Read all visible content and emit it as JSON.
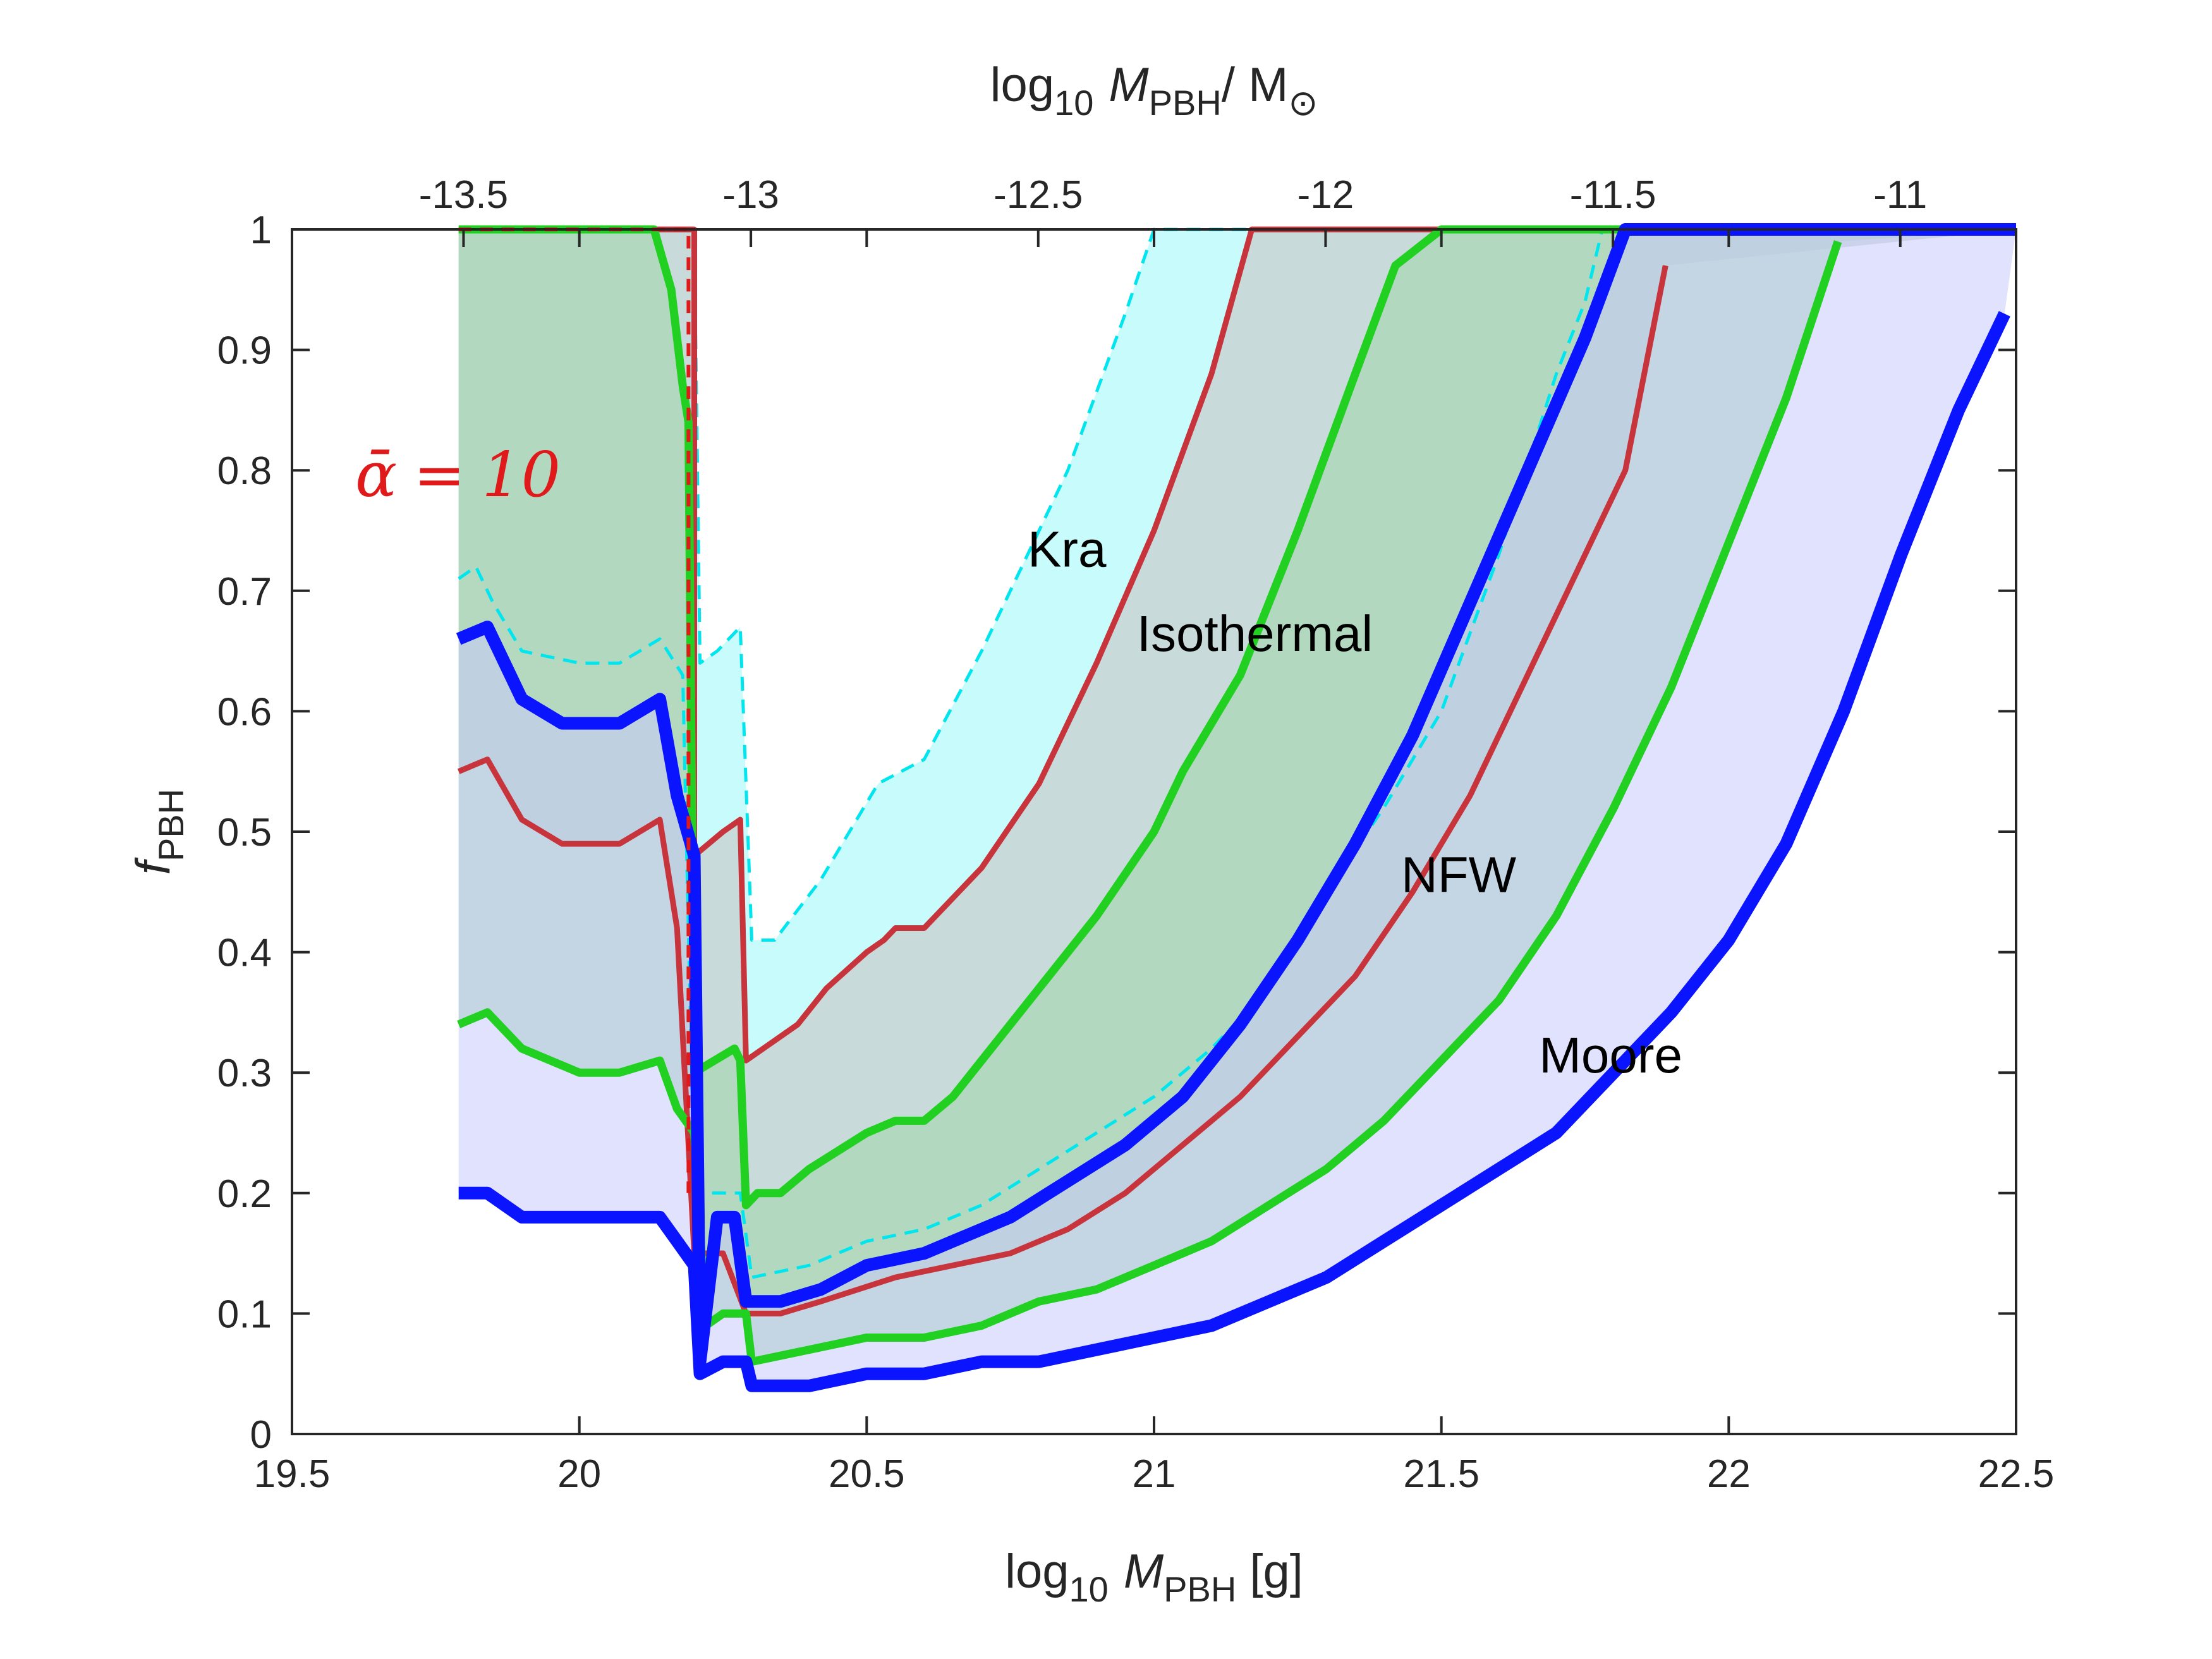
{
  "chart_data": {
    "type": "line",
    "annotation": {
      "parameter_symbol": "ᾱ",
      "equals": "=",
      "parameter_value": "10"
    },
    "x_axis": {
      "label_main": "log",
      "label_sub": "10",
      "label_var": "M",
      "label_var_sub": "PBH",
      "label_units": " [g]",
      "range": [
        19.5,
        22.5
      ],
      "ticks": [
        {
          "value": 19.5,
          "label": "19.5"
        },
        {
          "value": 20,
          "label": "20"
        },
        {
          "value": 20.5,
          "label": "20.5"
        },
        {
          "value": 21,
          "label": "21"
        },
        {
          "value": 21.5,
          "label": "21.5"
        },
        {
          "value": 22,
          "label": "22"
        },
        {
          "value": 22.5,
          "label": "22.5"
        }
      ]
    },
    "top_axis": {
      "label_main": "log",
      "label_sub": "10",
      "label_var": "M",
      "label_var_sub": "PBH",
      "label_tail": "/ M",
      "label_tail_sub": "⊙",
      "ticks": [
        {
          "value": -13.5,
          "label": "-13.5"
        },
        {
          "value": -13,
          "label": "-13"
        },
        {
          "value": -12.5,
          "label": "-12.5"
        },
        {
          "value": -12,
          "label": "-12"
        },
        {
          "value": -11.5,
          "label": "-11.5"
        },
        {
          "value": -11,
          "label": "-11"
        }
      ]
    },
    "y_axis": {
      "label_var": "f",
      "label_var_sub": "PBH",
      "range": [
        0,
        1
      ],
      "ticks": [
        {
          "value": 0,
          "label": "0"
        },
        {
          "value": 0.1,
          "label": "0.1"
        },
        {
          "value": 0.2,
          "label": "0.2"
        },
        {
          "value": 0.3,
          "label": "0.3"
        },
        {
          "value": 0.4,
          "label": "0.4"
        },
        {
          "value": 0.5,
          "label": "0.5"
        },
        {
          "value": 0.6,
          "label": "0.6"
        },
        {
          "value": 0.7,
          "label": "0.7"
        },
        {
          "value": 0.8,
          "label": "0.8"
        },
        {
          "value": 0.9,
          "label": "0.9"
        },
        {
          "value": 1,
          "label": "1"
        }
      ]
    },
    "curve_labels": [
      {
        "text": "Kra",
        "x": 20.78,
        "y": 0.72
      },
      {
        "text": "Isothermal",
        "x": 20.97,
        "y": 0.65
      },
      {
        "text": "NFW",
        "x": 21.43,
        "y": 0.45
      },
      {
        "text": "Moore",
        "x": 21.67,
        "y": 0.3
      }
    ],
    "series": [
      {
        "name": "Kra",
        "color": "#00e5ee",
        "style": "dashed",
        "fill": "#c8fcfc",
        "width": 5,
        "upper": [
          [
            19.79,
            1
          ],
          [
            20.2,
            1
          ],
          [
            20.21,
            0.64
          ],
          [
            20.24,
            0.65
          ],
          [
            20.28,
            0.67
          ],
          [
            20.3,
            0.41
          ],
          [
            20.34,
            0.41
          ],
          [
            20.42,
            0.46
          ],
          [
            20.52,
            0.54
          ],
          [
            20.6,
            0.56
          ],
          [
            20.7,
            0.65
          ],
          [
            20.85,
            0.8
          ],
          [
            20.95,
            0.93
          ],
          [
            21.0,
            1
          ],
          [
            22.5,
            1
          ]
        ],
        "lower": [
          [
            19.79,
            0.71
          ],
          [
            19.82,
            0.72
          ],
          [
            19.85,
            0.69
          ],
          [
            19.9,
            0.65
          ],
          [
            20.0,
            0.64
          ],
          [
            20.07,
            0.64
          ],
          [
            20.14,
            0.66
          ],
          [
            20.18,
            0.63
          ],
          [
            20.2,
            0.2
          ],
          [
            20.24,
            0.2
          ],
          [
            20.28,
            0.2
          ],
          [
            20.3,
            0.13
          ],
          [
            20.4,
            0.14
          ],
          [
            20.5,
            0.16
          ],
          [
            20.6,
            0.17
          ],
          [
            20.7,
            0.19
          ],
          [
            20.8,
            0.22
          ],
          [
            20.9,
            0.25
          ],
          [
            21.0,
            0.28
          ],
          [
            21.1,
            0.32
          ],
          [
            21.2,
            0.37
          ],
          [
            21.3,
            0.45
          ],
          [
            21.4,
            0.52
          ],
          [
            21.5,
            0.6
          ],
          [
            21.6,
            0.73
          ],
          [
            21.7,
            0.88
          ],
          [
            21.75,
            0.94
          ],
          [
            21.78,
            1
          ],
          [
            22.5,
            1
          ]
        ]
      },
      {
        "name": "Isothermal",
        "color": "#c8343c",
        "style": "solid",
        "fill": "#c9d3d3",
        "width": 9,
        "upper": [
          [
            19.79,
            1
          ],
          [
            20.2,
            1
          ],
          [
            20.2,
            0.48
          ],
          [
            20.25,
            0.5
          ],
          [
            20.28,
            0.51
          ],
          [
            20.29,
            0.31
          ],
          [
            20.32,
            0.32
          ],
          [
            20.38,
            0.34
          ],
          [
            20.43,
            0.37
          ],
          [
            20.5,
            0.4
          ],
          [
            20.53,
            0.41
          ],
          [
            20.55,
            0.42
          ],
          [
            20.6,
            0.42
          ],
          [
            20.7,
            0.47
          ],
          [
            20.8,
            0.54
          ],
          [
            20.9,
            0.64
          ],
          [
            21.0,
            0.75
          ],
          [
            21.1,
            0.88
          ],
          [
            21.17,
            1
          ],
          [
            22.5,
            1
          ]
        ],
        "lower": [
          [
            19.79,
            0.55
          ],
          [
            19.84,
            0.56
          ],
          [
            19.9,
            0.51
          ],
          [
            19.97,
            0.49
          ],
          [
            20.07,
            0.49
          ],
          [
            20.14,
            0.51
          ],
          [
            20.17,
            0.42
          ],
          [
            20.2,
            0.15
          ],
          [
            20.25,
            0.15
          ],
          [
            20.29,
            0.1
          ],
          [
            20.35,
            0.1
          ],
          [
            20.42,
            0.11
          ],
          [
            20.55,
            0.13
          ],
          [
            20.65,
            0.14
          ],
          [
            20.75,
            0.15
          ],
          [
            20.85,
            0.17
          ],
          [
            20.95,
            0.2
          ],
          [
            21.05,
            0.24
          ],
          [
            21.15,
            0.28
          ],
          [
            21.25,
            0.33
          ],
          [
            21.35,
            0.38
          ],
          [
            21.45,
            0.45
          ],
          [
            21.55,
            0.53
          ],
          [
            21.65,
            0.63
          ],
          [
            21.75,
            0.73
          ],
          [
            21.82,
            0.8
          ],
          [
            21.89,
            0.97
          ]
        ]
      },
      {
        "name": "NFW",
        "color": "#22d022",
        "style": "solid",
        "fill": "#a9d8b5",
        "width": 13,
        "upper": [
          [
            19.79,
            1
          ],
          [
            20.13,
            1
          ],
          [
            20.16,
            0.95
          ],
          [
            20.18,
            0.87
          ],
          [
            20.19,
            0.84
          ],
          [
            20.2,
            0.3
          ],
          [
            20.27,
            0.32
          ],
          [
            20.28,
            0.31
          ],
          [
            20.29,
            0.19
          ],
          [
            20.31,
            0.2
          ],
          [
            20.35,
            0.2
          ],
          [
            20.4,
            0.22
          ],
          [
            20.5,
            0.25
          ],
          [
            20.55,
            0.26
          ],
          [
            20.6,
            0.26
          ],
          [
            20.65,
            0.28
          ],
          [
            20.7,
            0.31
          ],
          [
            20.8,
            0.37
          ],
          [
            20.9,
            0.43
          ],
          [
            21.0,
            0.5
          ],
          [
            21.05,
            0.55
          ],
          [
            21.15,
            0.63
          ],
          [
            21.25,
            0.75
          ],
          [
            21.35,
            0.88
          ],
          [
            21.42,
            0.97
          ],
          [
            21.5,
            1
          ],
          [
            22.5,
            1
          ]
        ],
        "lower": [
          [
            19.79,
            0.34
          ],
          [
            19.84,
            0.35
          ],
          [
            19.9,
            0.32
          ],
          [
            20.0,
            0.3
          ],
          [
            20.07,
            0.3
          ],
          [
            20.14,
            0.31
          ],
          [
            20.17,
            0.27
          ],
          [
            20.2,
            0.25
          ],
          [
            20.22,
            0.09
          ],
          [
            20.25,
            0.1
          ],
          [
            20.29,
            0.1
          ],
          [
            20.3,
            0.06
          ],
          [
            20.4,
            0.07
          ],
          [
            20.5,
            0.08
          ],
          [
            20.6,
            0.08
          ],
          [
            20.7,
            0.09
          ],
          [
            20.8,
            0.11
          ],
          [
            20.9,
            0.12
          ],
          [
            21.0,
            0.14
          ],
          [
            21.1,
            0.16
          ],
          [
            21.2,
            0.19
          ],
          [
            21.3,
            0.22
          ],
          [
            21.4,
            0.26
          ],
          [
            21.5,
            0.31
          ],
          [
            21.6,
            0.36
          ],
          [
            21.7,
            0.43
          ],
          [
            21.8,
            0.52
          ],
          [
            21.9,
            0.62
          ],
          [
            22.0,
            0.74
          ],
          [
            22.1,
            0.86
          ],
          [
            22.19,
            0.99
          ]
        ]
      },
      {
        "name": "Moore",
        "color": "#0a14ff",
        "style": "solid",
        "fill": "#c9cbfb",
        "width": 20,
        "upper": [
          [
            19.79,
            0.66
          ],
          [
            19.84,
            0.67
          ],
          [
            19.9,
            0.61
          ],
          [
            19.97,
            0.59
          ],
          [
            20.07,
            0.59
          ],
          [
            20.14,
            0.61
          ],
          [
            20.17,
            0.53
          ],
          [
            20.2,
            0.48
          ],
          [
            20.21,
            0.06
          ],
          [
            20.24,
            0.18
          ],
          [
            20.27,
            0.18
          ],
          [
            20.29,
            0.11
          ],
          [
            20.35,
            0.11
          ],
          [
            20.42,
            0.12
          ],
          [
            20.5,
            0.14
          ],
          [
            20.6,
            0.15
          ],
          [
            20.65,
            0.16
          ],
          [
            20.75,
            0.18
          ],
          [
            20.85,
            0.21
          ],
          [
            20.95,
            0.24
          ],
          [
            21.05,
            0.28
          ],
          [
            21.15,
            0.34
          ],
          [
            21.25,
            0.41
          ],
          [
            21.35,
            0.49
          ],
          [
            21.45,
            0.58
          ],
          [
            21.55,
            0.69
          ],
          [
            21.65,
            0.8
          ],
          [
            21.75,
            0.91
          ],
          [
            21.82,
            1
          ],
          [
            22.5,
            1
          ]
        ],
        "lower": [
          [
            19.79,
            0.2
          ],
          [
            19.84,
            0.2
          ],
          [
            19.9,
            0.18
          ],
          [
            20.0,
            0.18
          ],
          [
            20.07,
            0.18
          ],
          [
            20.14,
            0.18
          ],
          [
            20.17,
            0.16
          ],
          [
            20.2,
            0.14
          ],
          [
            20.21,
            0.05
          ],
          [
            20.25,
            0.06
          ],
          [
            20.29,
            0.06
          ],
          [
            20.3,
            0.04
          ],
          [
            20.4,
            0.04
          ],
          [
            20.5,
            0.05
          ],
          [
            20.6,
            0.05
          ],
          [
            20.7,
            0.06
          ],
          [
            20.8,
            0.06
          ],
          [
            20.9,
            0.07
          ],
          [
            21.0,
            0.08
          ],
          [
            21.1,
            0.09
          ],
          [
            21.2,
            0.11
          ],
          [
            21.3,
            0.13
          ],
          [
            21.4,
            0.16
          ],
          [
            21.5,
            0.19
          ],
          [
            21.6,
            0.22
          ],
          [
            21.7,
            0.25
          ],
          [
            21.8,
            0.3
          ],
          [
            21.9,
            0.35
          ],
          [
            22.0,
            0.41
          ],
          [
            22.1,
            0.49
          ],
          [
            22.2,
            0.6
          ],
          [
            22.3,
            0.73
          ],
          [
            22.4,
            0.85
          ],
          [
            22.48,
            0.93
          ]
        ]
      }
    ]
  }
}
